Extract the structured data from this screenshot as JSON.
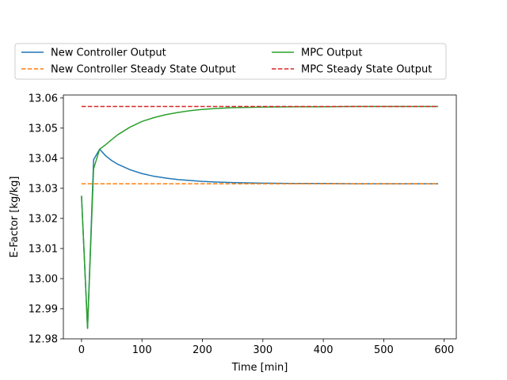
{
  "chart_data": {
    "type": "line",
    "title": "",
    "xlabel": "Time [min]",
    "ylabel": "E-Factor [kg/kg]",
    "xlim": [
      -30,
      620
    ],
    "ylim": [
      12.98,
      13.061
    ],
    "xticks": [
      0,
      100,
      200,
      300,
      400,
      500,
      600
    ],
    "xtick_labels": [
      "0",
      "100",
      "200",
      "300",
      "400",
      "500",
      "600"
    ],
    "yticks": [
      12.98,
      12.99,
      13.0,
      13.01,
      13.02,
      13.03,
      13.04,
      13.05,
      13.06
    ],
    "ytick_labels": [
      "12.98",
      "12.99",
      "13.00",
      "13.01",
      "13.02",
      "13.03",
      "13.04",
      "13.05",
      "13.06"
    ],
    "grid": false,
    "legend_position": "top",
    "series": [
      {
        "name": "New Controller Output",
        "color": "#1f77b4",
        "style": "solid",
        "x": [
          0,
          10,
          20,
          30,
          40,
          50,
          60,
          80,
          100,
          120,
          140,
          160,
          180,
          200,
          220,
          250,
          300,
          350,
          400,
          450,
          500,
          550,
          590
        ],
        "y": [
          13.0275,
          12.9835,
          13.0395,
          13.043,
          13.0408,
          13.0392,
          13.038,
          13.0362,
          13.0349,
          13.034,
          13.0334,
          13.0329,
          13.0326,
          13.0323,
          13.0321,
          13.0319,
          13.0317,
          13.0316,
          13.0316,
          13.0315,
          13.0315,
          13.0315,
          13.0315
        ]
      },
      {
        "name": "New Controller Steady State Output",
        "color": "#ff7f0e",
        "style": "dashed",
        "x": [
          0,
          590
        ],
        "y": [
          13.0315,
          13.0315
        ]
      },
      {
        "name": "MPC Output",
        "color": "#2ca02c",
        "style": "solid",
        "x": [
          0,
          10,
          20,
          30,
          40,
          50,
          60,
          80,
          100,
          120,
          140,
          160,
          180,
          200,
          220,
          250,
          300,
          350,
          400,
          450,
          500,
          550,
          590
        ],
        "y": [
          13.0275,
          12.9835,
          13.0365,
          13.043,
          13.0445,
          13.0462,
          13.0478,
          13.0503,
          13.0522,
          13.0535,
          13.0545,
          13.0552,
          13.0558,
          13.0562,
          13.0565,
          13.0568,
          13.057,
          13.0571,
          13.0571,
          13.0572,
          13.0572,
          13.0572,
          13.0572
        ]
      },
      {
        "name": "MPC Steady State Output",
        "color": "#d62728",
        "style": "dashed",
        "x": [
          0,
          590
        ],
        "y": [
          13.0572,
          13.0572
        ]
      }
    ]
  }
}
